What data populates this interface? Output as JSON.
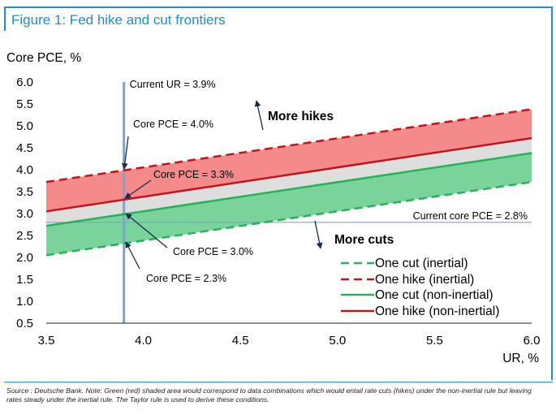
{
  "figure_title": "Figure 1: Fed hike and cut frontiers",
  "source_note": "Source : Deutsche Bank. Note: Green (red) shaded area would correspond to data combinations which would entail rate cuts (hikes) under the non-inertial rule but leaving rates steady under the inertial rule. The Taylor rule is used to derive these conditions.",
  "chart_data": {
    "type": "line",
    "ylabel": "Core PCE, %",
    "xlabel": "UR, %",
    "xlim": [
      3.5,
      6.0
    ],
    "ylim": [
      0.5,
      6.0
    ],
    "x_ticks": [
      "3.5",
      "4.0",
      "4.5",
      "5.0",
      "5.5",
      "6.0"
    ],
    "y_ticks": [
      "0.5",
      "1.0",
      "1.5",
      "2.0",
      "2.5",
      "3.0",
      "3.5",
      "4.0",
      "4.5",
      "5.0",
      "5.5",
      "6.0"
    ],
    "series": [
      {
        "name": "One cut (inertial)",
        "x": [
          3.5,
          6.0
        ],
        "y": [
          2.05,
          3.72
        ],
        "color": "#27b257",
        "dash": true
      },
      {
        "name": "One hike (inertial)",
        "x": [
          3.5,
          6.0
        ],
        "y": [
          3.72,
          5.38
        ],
        "color": "#c0151b",
        "dash": true
      },
      {
        "name": "One cut (non-inertial)",
        "x": [
          3.5,
          6.0
        ],
        "y": [
          2.72,
          4.38
        ],
        "color": "#27b257",
        "dash": false
      },
      {
        "name": "One hike (non-inertial)",
        "x": [
          3.5,
          6.0
        ],
        "y": [
          3.05,
          4.72
        ],
        "color": "#c0151b",
        "dash": false
      }
    ],
    "shaded_regions": [
      {
        "between": [
          "One hike (non-inertial)",
          "One hike (inertial)"
        ],
        "color": "#f48a8a"
      },
      {
        "between": [
          "One cut (non-inertial)",
          "One hike (non-inertial)"
        ],
        "color": "#dedede"
      },
      {
        "between": [
          "One cut (inertial)",
          "One cut (non-inertial)"
        ],
        "color": "#79d39a"
      }
    ],
    "reference_lines": [
      {
        "orientation": "vertical",
        "value": 3.9,
        "label": "Current UR = 3.9%",
        "color": "#7ba3d8"
      },
      {
        "orientation": "horizontal",
        "value": 2.8,
        "label": "Current core PCE = 2.8%",
        "color": "#7ba3d8"
      }
    ],
    "annotations": [
      {
        "text": "Core PCE = 4.0%",
        "point": [
          3.9,
          4.0
        ]
      },
      {
        "text": "Core PCE = 3.3%",
        "point": [
          3.9,
          3.3
        ]
      },
      {
        "text": "Core PCE = 3.0%",
        "point": [
          3.9,
          3.0
        ]
      },
      {
        "text": "Core PCE = 2.3%",
        "point": [
          3.9,
          2.3
        ]
      }
    ],
    "region_labels": [
      "More hikes",
      "More cuts"
    ],
    "legend_position": "bottom-right",
    "grid": false
  }
}
